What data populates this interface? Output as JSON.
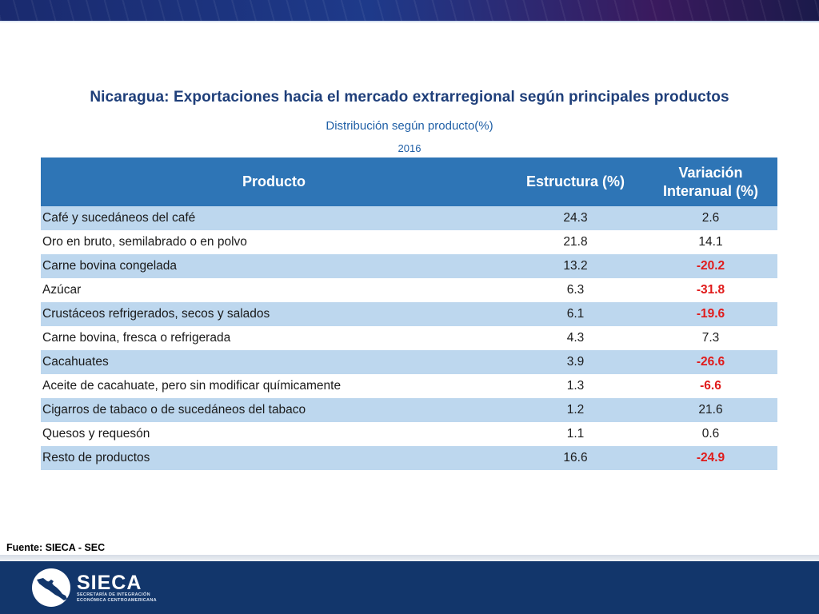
{
  "title": "Nicaragua: Exportaciones hacia el mercado extrarregional según principales productos",
  "subtitle": "Distribución según producto(%)",
  "year": "2016",
  "table": {
    "headers": [
      "Producto",
      "Estructura (%)",
      "Variación",
      "Interanual (%)"
    ],
    "rows": [
      {
        "producto": "Café y sucedáneos del café",
        "estructura": "24.3",
        "variacion": "2.6"
      },
      {
        "producto": "Oro en bruto, semilabrado o en polvo",
        "estructura": "21.8",
        "variacion": "14.1"
      },
      {
        "producto": "Carne bovina congelada",
        "estructura": "13.2",
        "variacion": "-20.2"
      },
      {
        "producto": "Azúcar",
        "estructura": "6.3",
        "variacion": "-31.8"
      },
      {
        "producto": "Crustáceos refrigerados, secos y salados",
        "estructura": "6.1",
        "variacion": "-19.6"
      },
      {
        "producto": "Carne bovina, fresca o refrigerada",
        "estructura": "4.3",
        "variacion": "7.3"
      },
      {
        "producto": "Cacahuates",
        "estructura": "3.9",
        "variacion": "-26.6"
      },
      {
        "producto": "Aceite de cacahuate, pero sin modificar químicamente",
        "estructura": "1.3",
        "variacion": "-6.6"
      },
      {
        "producto": "Cigarros de tabaco o de sucedáneos del tabaco",
        "estructura": "1.2",
        "variacion": "21.6"
      },
      {
        "producto": "Quesos y requesón",
        "estructura": "1.1",
        "variacion": "0.6"
      },
      {
        "producto": "Resto de productos",
        "estructura": "16.6",
        "variacion": "-24.9"
      }
    ]
  },
  "colors": {
    "header_bg": "#2e75b6",
    "row_alt_bg": "#bdd7ee",
    "negative": "#e01b1b",
    "title": "#1f3f7a",
    "footer_bg": "#12366b"
  },
  "source": "Fuente: SIECA - SEC",
  "footer": {
    "logo_icon": "central-america-map-icon",
    "logo_text": "SIECA",
    "logo_sub_line1": "SECRETARÍA DE INTEGRACIÓN",
    "logo_sub_line2": "ECONÓMICA CENTROAMERICANA"
  }
}
